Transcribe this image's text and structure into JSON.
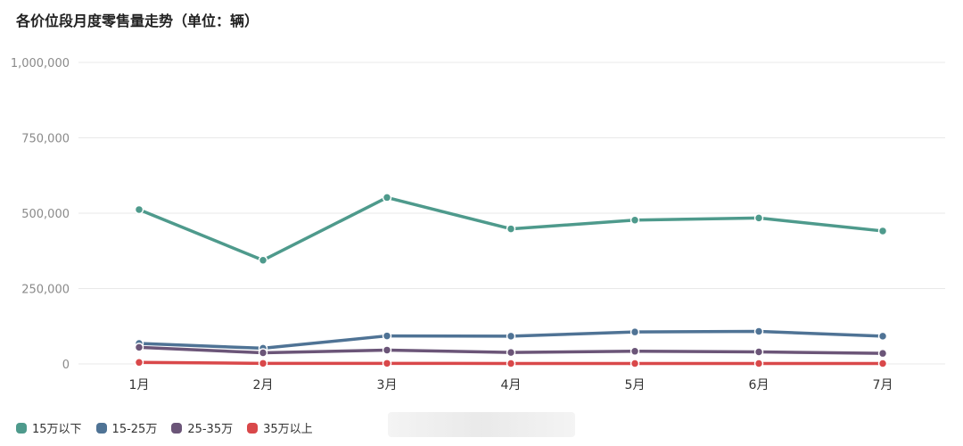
{
  "title": "各价位段月度零售量走势（单位：辆）",
  "chart_data": {
    "type": "line",
    "title": "各价位段月度零售量走势（单位：辆）",
    "categories": [
      "1月",
      "2月",
      "3月",
      "4月",
      "5月",
      "6月",
      "7月"
    ],
    "ylim": [
      0,
      1000000
    ],
    "yticks": [
      0,
      250000,
      500000,
      750000,
      1000000
    ],
    "ytick_labels": [
      "0",
      "250,000",
      "500,000",
      "750,000",
      "1,000,000"
    ],
    "grid": true,
    "legend_position": "bottom-left",
    "series": [
      {
        "name": "15万以下",
        "color": "#4e9a8c",
        "values": [
          512000,
          344000,
          552000,
          448000,
          477000,
          484000,
          441000
        ]
      },
      {
        "name": "15-25万",
        "color": "#4f7395",
        "values": [
          68000,
          52000,
          93000,
          92000,
          106000,
          108000,
          92000
        ]
      },
      {
        "name": "25-35万",
        "color": "#6b5578",
        "values": [
          55000,
          37000,
          46000,
          38000,
          42000,
          40000,
          35000
        ]
      },
      {
        "name": "35万以上",
        "color": "#d9484a",
        "values": [
          5000,
          2000,
          2000,
          1500,
          1500,
          1500,
          1500
        ]
      }
    ]
  }
}
